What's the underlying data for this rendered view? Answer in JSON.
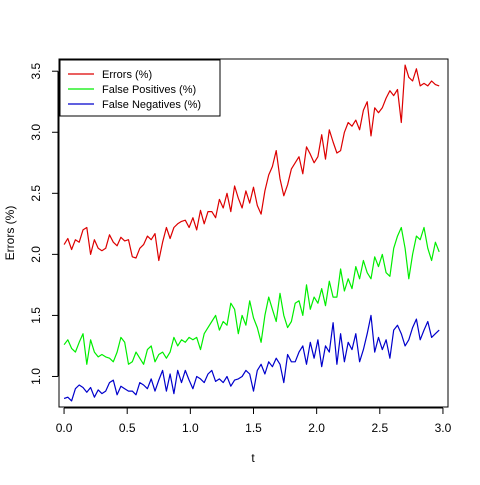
{
  "chart_data": {
    "type": "line",
    "title": "",
    "xlabel": "t",
    "ylabel": "Errors (%)",
    "xlim": [
      -0.04,
      3.04
    ],
    "ylim": [
      0.75,
      3.6
    ],
    "xticks": [
      0.0,
      0.5,
      1.0,
      1.5,
      2.0,
      2.5,
      3.0
    ],
    "xtick_labels": [
      "0.0",
      "0.5",
      "1.0",
      "1.5",
      "2.0",
      "2.5",
      "3.0"
    ],
    "yticks": [
      1.0,
      1.5,
      2.0,
      2.5,
      3.0,
      3.5
    ],
    "ytick_labels": [
      "1.0",
      "1.5",
      "2.0",
      "2.5",
      "3.0",
      "3.5"
    ],
    "grid": false,
    "legend_position": "top-left",
    "x": [
      0.0,
      0.03,
      0.06,
      0.09,
      0.12,
      0.15,
      0.18,
      0.21,
      0.24,
      0.27,
      0.3,
      0.33,
      0.36,
      0.39,
      0.42,
      0.45,
      0.48,
      0.51,
      0.54,
      0.57,
      0.6,
      0.63,
      0.66,
      0.69,
      0.72,
      0.75,
      0.78,
      0.81,
      0.84,
      0.87,
      0.9,
      0.93,
      0.96,
      0.99,
      1.02,
      1.05,
      1.08,
      1.11,
      1.14,
      1.17,
      1.2,
      1.23,
      1.26,
      1.29,
      1.32,
      1.35,
      1.38,
      1.41,
      1.44,
      1.47,
      1.5,
      1.53,
      1.56,
      1.59,
      1.62,
      1.65,
      1.68,
      1.71,
      1.74,
      1.77,
      1.8,
      1.83,
      1.86,
      1.89,
      1.92,
      1.95,
      1.98,
      2.01,
      2.04,
      2.07,
      2.1,
      2.13,
      2.16,
      2.19,
      2.22,
      2.25,
      2.28,
      2.31,
      2.34,
      2.37,
      2.4,
      2.43,
      2.46,
      2.49,
      2.52,
      2.55,
      2.58,
      2.61,
      2.64,
      2.67,
      2.7,
      2.73,
      2.76,
      2.79,
      2.82,
      2.85,
      2.88,
      2.91,
      2.94,
      2.97
    ],
    "series": [
      {
        "name": "Errors (%)",
        "color": "#dd0000",
        "values": [
          2.08,
          2.13,
          2.04,
          2.12,
          2.1,
          2.2,
          2.22,
          2.0,
          2.12,
          2.05,
          2.03,
          2.05,
          2.16,
          2.1,
          2.07,
          2.14,
          2.11,
          2.12,
          1.98,
          1.97,
          2.05,
          2.08,
          2.15,
          2.12,
          2.17,
          1.95,
          2.1,
          2.22,
          2.13,
          2.22,
          2.25,
          2.27,
          2.28,
          2.22,
          2.3,
          2.2,
          2.36,
          2.25,
          2.35,
          2.35,
          2.3,
          2.45,
          2.38,
          2.5,
          2.35,
          2.56,
          2.46,
          2.38,
          2.52,
          2.42,
          2.55,
          2.4,
          2.33,
          2.52,
          2.65,
          2.72,
          2.85,
          2.62,
          2.48,
          2.57,
          2.7,
          2.75,
          2.8,
          2.66,
          2.88,
          2.82,
          2.75,
          2.8,
          2.98,
          2.78,
          3.02,
          2.92,
          2.83,
          2.85,
          3.0,
          3.08,
          3.05,
          3.1,
          3.02,
          3.18,
          3.25,
          2.97,
          3.2,
          3.16,
          3.2,
          3.28,
          3.34,
          3.3,
          3.35,
          3.08,
          3.55,
          3.45,
          3.42,
          3.52,
          3.38,
          3.4,
          3.38,
          3.42,
          3.39,
          3.38
        ]
      },
      {
        "name": "False Positives (%)",
        "color": "#00ee00",
        "values": [
          1.26,
          1.3,
          1.23,
          1.2,
          1.28,
          1.35,
          1.1,
          1.3,
          1.2,
          1.16,
          1.18,
          1.16,
          1.15,
          1.12,
          1.2,
          1.32,
          1.28,
          1.1,
          1.12,
          1.2,
          1.15,
          1.1,
          1.22,
          1.25,
          1.12,
          1.18,
          1.2,
          1.15,
          1.2,
          1.32,
          1.25,
          1.3,
          1.28,
          1.32,
          1.3,
          1.32,
          1.22,
          1.35,
          1.4,
          1.45,
          1.5,
          1.38,
          1.45,
          1.42,
          1.6,
          1.55,
          1.35,
          1.5,
          1.42,
          1.62,
          1.48,
          1.4,
          1.28,
          1.5,
          1.65,
          1.55,
          1.45,
          1.68,
          1.5,
          1.4,
          1.45,
          1.6,
          1.62,
          1.5,
          1.75,
          1.55,
          1.65,
          1.6,
          1.72,
          1.58,
          1.78,
          1.65,
          1.65,
          1.88,
          1.7,
          1.8,
          1.72,
          1.9,
          1.8,
          1.95,
          1.85,
          1.8,
          1.98,
          1.9,
          2.0,
          1.85,
          1.82,
          2.05,
          2.15,
          2.22,
          2.05,
          1.8,
          2.0,
          2.15,
          2.12,
          2.22,
          2.05,
          1.95,
          2.1,
          2.02
        ]
      },
      {
        "name": "False Negatives (%)",
        "color": "#0000cc",
        "values": [
          0.82,
          0.83,
          0.8,
          0.9,
          0.93,
          0.91,
          0.87,
          0.91,
          0.83,
          0.89,
          0.86,
          0.88,
          0.95,
          0.97,
          0.85,
          0.92,
          0.9,
          0.88,
          0.88,
          0.85,
          0.95,
          0.93,
          0.9,
          0.98,
          0.88,
          0.97,
          1.05,
          0.88,
          1.02,
          0.86,
          1.05,
          0.95,
          1.05,
          0.97,
          0.9,
          1.0,
          0.98,
          0.95,
          1.02,
          1.05,
          0.96,
          0.98,
          0.95,
          1.0,
          0.92,
          0.97,
          0.98,
          1.0,
          1.05,
          1.02,
          0.88,
          1.05,
          1.1,
          1.02,
          1.12,
          1.08,
          1.15,
          1.1,
          0.95,
          1.18,
          1.12,
          1.12,
          1.2,
          1.25,
          1.1,
          1.28,
          1.15,
          1.3,
          1.08,
          1.25,
          1.2,
          1.44,
          1.1,
          1.35,
          1.12,
          1.28,
          1.22,
          1.35,
          1.12,
          1.22,
          1.35,
          1.5,
          1.2,
          1.32,
          1.22,
          1.3,
          1.15,
          1.38,
          1.42,
          1.35,
          1.25,
          1.3,
          1.4,
          1.47,
          1.3,
          1.38,
          1.45,
          1.32,
          1.35,
          1.38
        ]
      }
    ]
  }
}
